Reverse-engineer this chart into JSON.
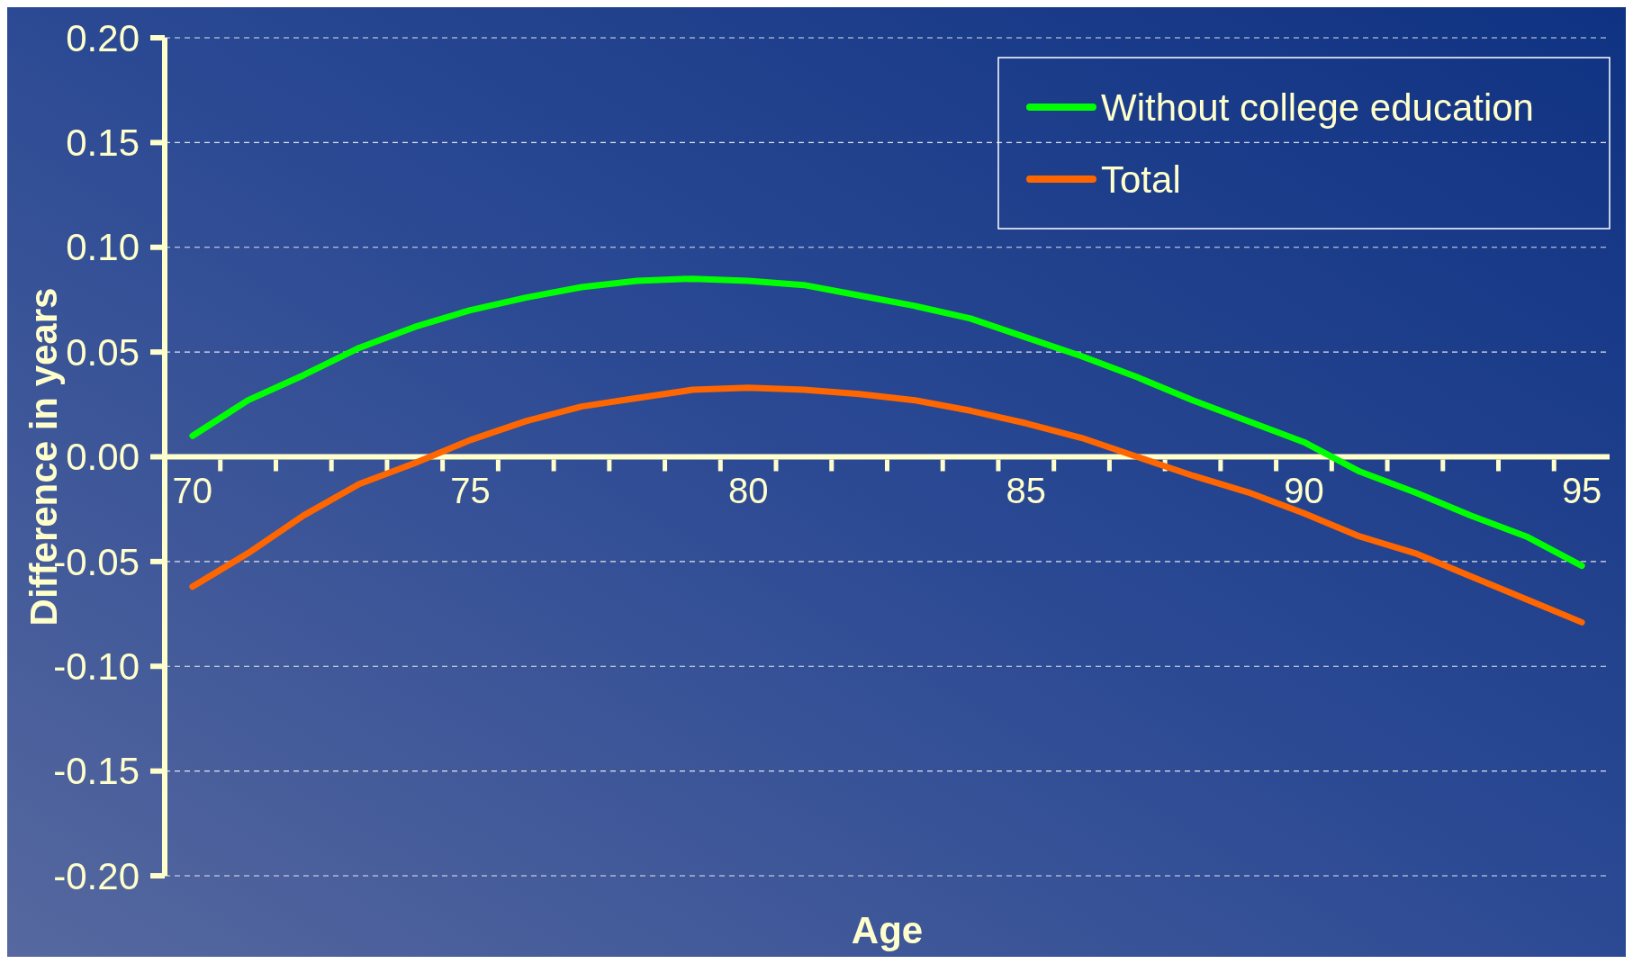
{
  "chart_data": {
    "type": "line",
    "xlabel": "Age",
    "ylabel": "Difference in years",
    "categories": [
      "70",
      null,
      null,
      null,
      null,
      "75",
      null,
      null,
      null,
      null,
      "80",
      null,
      null,
      null,
      null,
      "85",
      null,
      null,
      null,
      null,
      "90",
      null,
      null,
      null,
      null,
      "95"
    ],
    "series": [
      {
        "name": "Without college education",
        "color": "#00ff00",
        "values": [
          0.01,
          0.027,
          0.039,
          0.052,
          0.062,
          0.07,
          0.076,
          0.081,
          0.084,
          0.085,
          0.084,
          0.082,
          0.077,
          0.072,
          0.066,
          0.057,
          0.048,
          0.038,
          0.027,
          0.017,
          0.007,
          -0.007,
          -0.017,
          -0.028,
          -0.038,
          -0.052
        ]
      },
      {
        "name": "Total",
        "color": "#ff6600",
        "values": [
          -0.062,
          -0.046,
          -0.028,
          -0.013,
          -0.003,
          0.008,
          0.017,
          0.024,
          0.028,
          0.032,
          0.033,
          0.032,
          0.03,
          0.027,
          0.022,
          0.016,
          0.009,
          0.0,
          -0.009,
          -0.017,
          -0.027,
          -0.038,
          -0.046,
          -0.057,
          -0.068,
          -0.079
        ]
      }
    ],
    "ylim": [
      -0.2,
      0.2
    ],
    "yticks": [
      {
        "value": -0.2,
        "label": "-0.20"
      },
      {
        "value": -0.15,
        "label": "-0.15"
      },
      {
        "value": -0.1,
        "label": "-0.10"
      },
      {
        "value": -0.05,
        "label": "-0.05"
      },
      {
        "value": 0,
        "label": "0.00"
      },
      {
        "value": 0.05,
        "label": "0.05"
      },
      {
        "value": 0.1,
        "label": "0.10"
      },
      {
        "value": 0.15,
        "label": "0.15"
      },
      {
        "value": 0.2,
        "label": "0.20"
      }
    ],
    "grid": "y",
    "legend": "top right",
    "line_style": "solid"
  }
}
